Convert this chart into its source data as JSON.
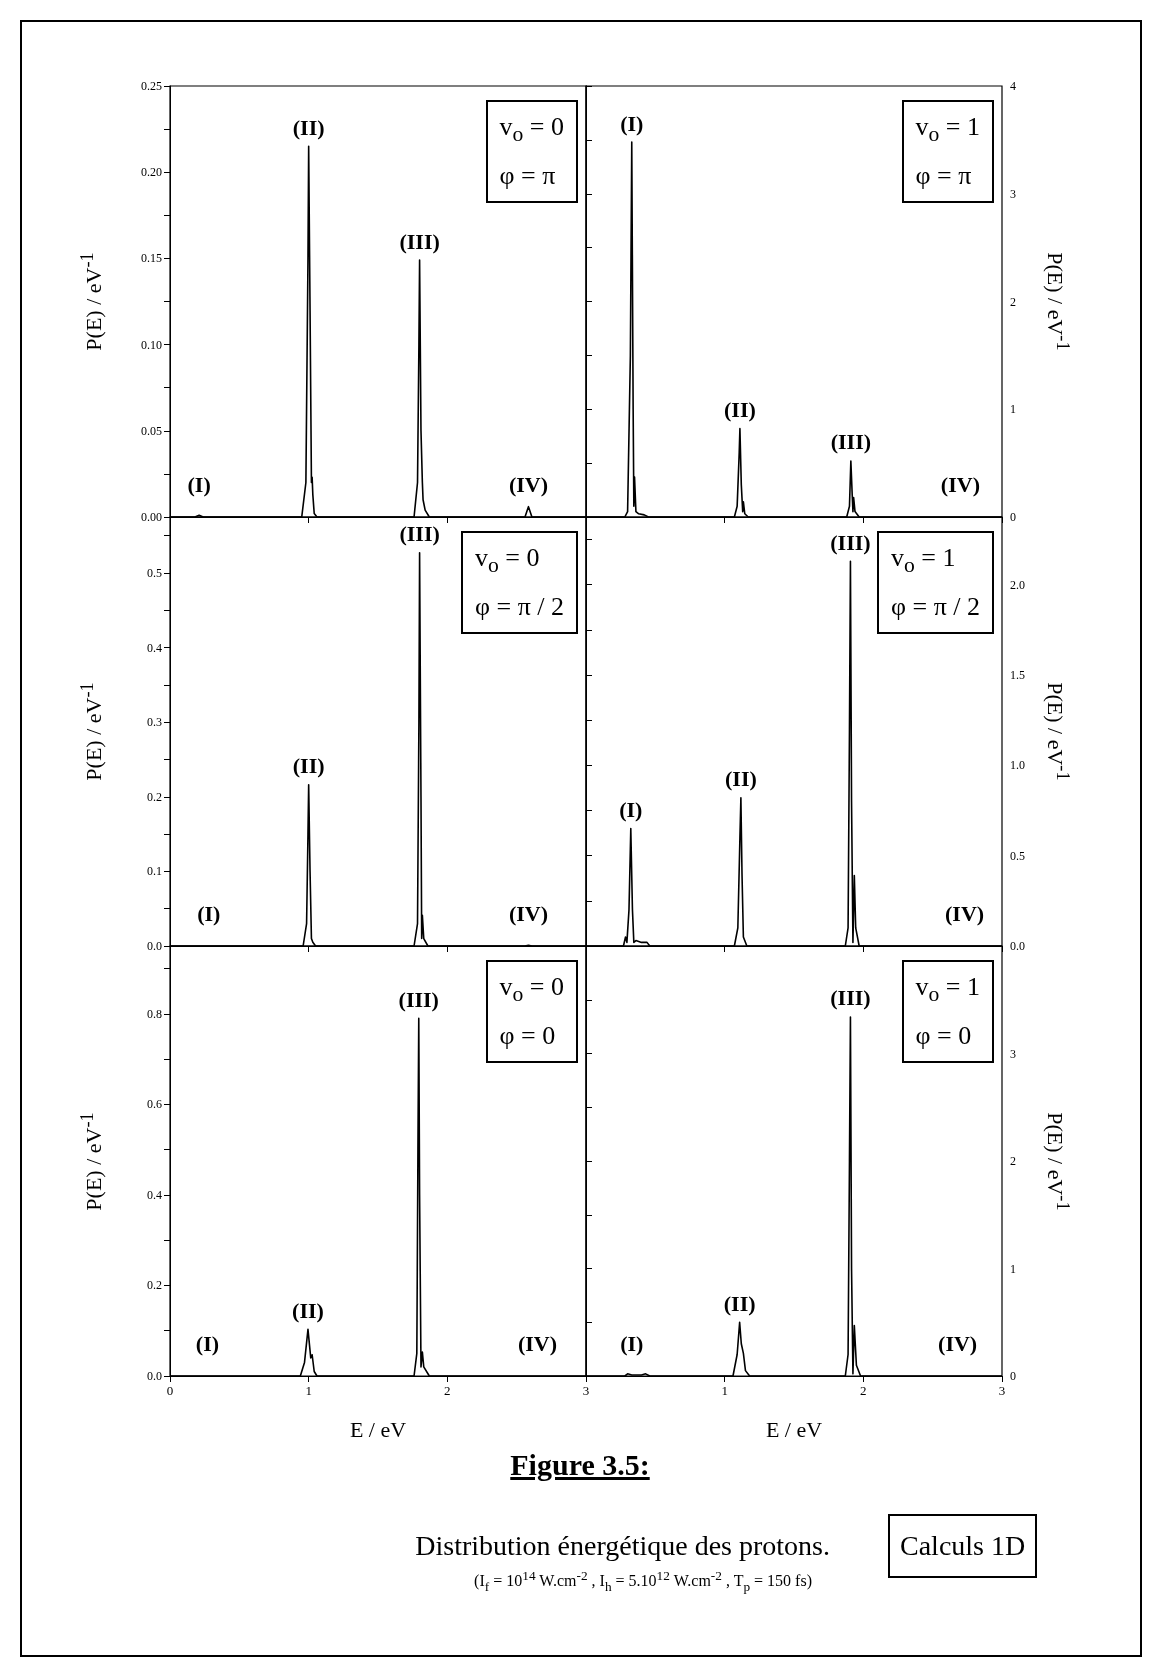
{
  "chart_data": [
    {
      "type": "line",
      "ylabel": "P(E) / eV$^{-1}$",
      "xlim": [
        0,
        3
      ],
      "xticks": [
        0,
        1,
        2,
        3
      ],
      "ylim": [
        0,
        0.25
      ],
      "yticks": [
        {
          "value": 0,
          "label": "0.00"
        },
        {
          "value": 0.025,
          "label": null
        },
        0.05,
        {
          "value": 0.075,
          "label": null
        },
        {
          "value": 0.1,
          "label": "0.10"
        },
        {
          "value": 0.125,
          "label": null
        },
        0.15,
        {
          "value": 0.175,
          "label": null
        },
        {
          "value": 0.2,
          "label": "0.20"
        },
        {
          "value": 0.225,
          "label": null
        },
        0.25
      ],
      "tick_labels": "y",
      "marker": "none",
      "series": [
        {
          "color": "#000000",
          "x": [
            0,
            0.18,
            0.21,
            0.24,
            0.95,
            0.98,
            0.995,
            1.0,
            1.01,
            1.02,
            1.025,
            1.03,
            1.04,
            1.06,
            1.76,
            1.785,
            1.795,
            1.8,
            1.81,
            1.82,
            1.825,
            1.84,
            1.87,
            2.56,
            2.585,
            2.61,
            3
          ],
          "values": [
            0,
            0,
            0.001,
            0,
            0,
            0.02,
            0.15,
            0.215,
            0.12,
            0.02,
            0.023,
            0.013,
            0.002,
            0,
            0,
            0.02,
            0.1,
            0.149,
            0.05,
            0.02,
            0.01,
            0.004,
            0,
            0,
            0.006,
            0,
            0
          ]
        }
      ],
      "annotations": [
        "v$_{o}$ = 0",
        "φ = π",
        {
          "text": "(I)",
          "x": 0.21,
          "y": 0.001
        },
        {
          "text": "(II)",
          "x": 1.0,
          "y": 0.215
        },
        {
          "text": "(III)",
          "x": 1.8,
          "y": 0.149
        },
        {
          "text": "(IV)",
          "x": 2.585,
          "y": 0.006
        }
      ]
    },
    {
      "type": "line",
      "ylabel": "P(E) / eV$^{-1}$",
      "xlim": [
        0,
        3
      ],
      "xticks": [
        1,
        2,
        3
      ],
      "ylim": [
        0,
        4
      ],
      "yticks": [
        0,
        {
          "value": 0.5,
          "label": null
        },
        1,
        {
          "value": 1.5,
          "label": null
        },
        2,
        {
          "value": 2.5,
          "label": null
        },
        3,
        {
          "value": 3.5,
          "label": null
        },
        4
      ],
      "tick_labels": "y",
      "marker": "none",
      "series": [
        {
          "color": "#000000",
          "x": [
            0,
            0.28,
            0.3,
            0.32,
            0.33,
            0.34,
            0.345,
            0.35,
            0.36,
            0.38,
            0.42,
            0.45,
            1.07,
            1.09,
            1.105,
            1.11,
            1.12,
            1.13,
            1.135,
            1.145,
            1.17,
            1.88,
            1.9,
            1.91,
            1.92,
            1.925,
            1.93,
            1.94,
            1.97,
            2.7,
            3
          ],
          "values": [
            0,
            0,
            0.05,
            1.5,
            3.48,
            1.0,
            0.1,
            0.37,
            0.05,
            0.03,
            0.02,
            0,
            0,
            0.1,
            0.6,
            0.82,
            0.3,
            0.05,
            0.14,
            0.03,
            0,
            0,
            0.1,
            0.52,
            0.2,
            0.05,
            0.18,
            0.05,
            0,
            0,
            0
          ]
        }
      ],
      "annotations": [
        "v$_{o}$ = 1",
        "φ = π",
        {
          "text": "(I)",
          "x": 0.33,
          "y": 3.48
        },
        {
          "text": "(II)",
          "x": 1.11,
          "y": 0.82
        },
        {
          "text": "(III)",
          "x": 1.91,
          "y": 0.52
        },
        {
          "text": "(IV)",
          "x": 2.7,
          "y": 0
        }
      ]
    },
    {
      "type": "line",
      "ylabel": "P(E) / eV$^{-1}$",
      "xlim": [
        0,
        3
      ],
      "xticks": [
        0,
        1,
        2,
        3
      ],
      "ylim": [
        0,
        0.575
      ],
      "yticks": [
        {
          "value": 0,
          "label": "0.0"
        },
        {
          "value": 0.05,
          "label": null
        },
        0.1,
        {
          "value": 0.15,
          "label": null
        },
        0.2,
        {
          "value": 0.25,
          "label": null
        },
        0.3,
        {
          "value": 0.35,
          "label": null
        },
        0.4,
        {
          "value": 0.45,
          "label": null
        },
        0.5,
        {
          "value": 0.55,
          "label": null
        }
      ],
      "tick_labels": "y",
      "marker": "none",
      "series": [
        {
          "color": "#000000",
          "x": [
            0,
            0.28,
            0.96,
            0.985,
            0.995,
            1.0,
            1.01,
            1.02,
            1.03,
            1.05,
            1.76,
            1.785,
            1.795,
            1.8,
            1.81,
            1.815,
            1.82,
            1.83,
            1.86,
            2.56,
            2.585,
            2.61,
            3
          ],
          "values": [
            0,
            0,
            0,
            0.03,
            0.15,
            0.216,
            0.1,
            0.01,
            0.005,
            0,
            0,
            0.03,
            0.3,
            0.527,
            0.2,
            0.01,
            0.041,
            0.01,
            0,
            0,
            0.001,
            0,
            0
          ]
        }
      ],
      "annotations": [
        "v$_{o}$ = 0",
        "φ = π / 2",
        {
          "text": "(I)",
          "x": 0.28,
          "y": 0
        },
        {
          "text": "(II)",
          "x": 1.0,
          "y": 0.216
        },
        {
          "text": "(III)",
          "x": 1.8,
          "y": 0.527
        },
        {
          "text": "(IV)",
          "x": 2.585,
          "y": 0.001
        }
      ]
    },
    {
      "type": "line",
      "ylabel": "P(E) / eV$^{-1}$",
      "xlim": [
        0,
        3
      ],
      "xticks": [
        1,
        2,
        3
      ],
      "ylim": [
        0,
        2.375
      ],
      "yticks": [
        {
          "value": 0,
          "label": "0.0"
        },
        {
          "value": 0.25,
          "label": null
        },
        0.5,
        {
          "value": 0.75,
          "label": null
        },
        {
          "value": 1,
          "label": "1.0"
        },
        {
          "value": 1.25,
          "label": null
        },
        1.5,
        {
          "value": 1.75,
          "label": null
        },
        {
          "value": 2,
          "label": "2.0"
        },
        {
          "value": 2.25,
          "label": null
        }
      ],
      "tick_labels": "y",
      "marker": "none",
      "series": [
        {
          "color": "#000000",
          "x": [
            0,
            0.27,
            0.285,
            0.295,
            0.31,
            0.323,
            0.335,
            0.345,
            0.36,
            0.4,
            0.44,
            0.46,
            1.07,
            1.095,
            1.11,
            1.117,
            1.125,
            1.135,
            1.14,
            1.16,
            1.87,
            1.89,
            1.9,
            1.907,
            1.915,
            1.925,
            1.935,
            1.945,
            1.97,
            2.73,
            3
          ],
          "values": [
            0,
            0,
            0.05,
            0.02,
            0.2,
            0.65,
            0.2,
            0.02,
            0.03,
            0.02,
            0.02,
            0,
            0,
            0.1,
            0.6,
            0.82,
            0.4,
            0.05,
            0.05,
            0,
            0,
            0.1,
            1.2,
            2.13,
            0.8,
            0.02,
            0.39,
            0.1,
            0,
            0,
            0
          ]
        }
      ],
      "annotations": [
        "v$_{o}$ = 1",
        "φ = π / 2",
        {
          "text": "(I)",
          "x": 0.323,
          "y": 0.65
        },
        {
          "text": "(II)",
          "x": 1.117,
          "y": 0.82
        },
        {
          "text": "(III)",
          "x": 1.907,
          "y": 2.13
        },
        {
          "text": "(IV)",
          "x": 2.73,
          "y": 0
        }
      ]
    },
    {
      "type": "line",
      "xlabel": "E / eV",
      "ylabel": "P(E) / eV$^{-1}$",
      "xlim": [
        0,
        3
      ],
      "xticks": [
        0,
        1,
        2,
        3
      ],
      "ylim": [
        0,
        0.95
      ],
      "yticks": [
        {
          "value": 0,
          "label": "0.0"
        },
        {
          "value": 0.1,
          "label": null
        },
        0.2,
        {
          "value": 0.3,
          "label": null
        },
        0.4,
        {
          "value": 0.5,
          "label": null
        },
        0.6,
        {
          "value": 0.7,
          "label": null
        },
        0.8,
        {
          "value": 0.9,
          "label": null
        }
      ],
      "marker": "none",
      "series": [
        {
          "color": "#000000",
          "x": [
            0,
            0.27,
            0.94,
            0.97,
            0.995,
            1.015,
            1.025,
            1.04,
            1.06,
            1.76,
            1.78,
            1.788,
            1.794,
            1.8,
            1.81,
            1.82,
            1.83,
            1.87,
            2.65,
            3
          ],
          "values": [
            0,
            0,
            0,
            0.03,
            0.103,
            0.04,
            0.047,
            0.01,
            0,
            0,
            0.05,
            0.5,
            0.79,
            0.4,
            0.02,
            0.053,
            0.02,
            0,
            0,
            0
          ]
        }
      ],
      "annotations": [
        "v$_{o}$ = 0",
        "φ = 0",
        {
          "text": "(I)",
          "x": 0.27,
          "y": 0
        },
        {
          "text": "(II)",
          "x": 0.995,
          "y": 0.103
        },
        {
          "text": "(III)",
          "x": 1.794,
          "y": 0.79
        },
        {
          "text": "(IV)",
          "x": 2.65,
          "y": 0
        }
      ]
    },
    {
      "type": "line",
      "xlabel": "E / eV",
      "ylabel": "P(E) / eV$^{-1}$",
      "xlim": [
        0,
        3
      ],
      "xticks": [
        1,
        2,
        3
      ],
      "ylim": [
        0,
        4
      ],
      "yticks": [
        0,
        {
          "value": 0.5,
          "label": null
        },
        1,
        {
          "value": 1.5,
          "label": null
        },
        2,
        {
          "value": 2.5,
          "label": null
        },
        3,
        {
          "value": 3.5,
          "label": null
        }
      ],
      "marker": "none",
      "series": [
        {
          "color": "#000000",
          "x": [
            0,
            0.28,
            0.3,
            0.33,
            0.4,
            0.43,
            0.46,
            1.06,
            1.09,
            1.108,
            1.12,
            1.135,
            1.15,
            1.18,
            1.87,
            1.89,
            1.9,
            1.907,
            1.915,
            1.925,
            1.935,
            1.95,
            1.98,
            2.68,
            3
          ],
          "values": [
            0,
            0,
            0.02,
            0.01,
            0.01,
            0.02,
            0,
            0,
            0.2,
            0.5,
            0.3,
            0.21,
            0.05,
            0,
            0,
            0.2,
            2.0,
            3.34,
            1.0,
            0.02,
            0.47,
            0.1,
            0,
            0,
            0
          ]
        }
      ],
      "annotations": [
        "v$_{o}$ = 1",
        "φ = 0",
        {
          "text": "(I)",
          "x": 0.33,
          "y": 0.01
        },
        {
          "text": "(II)",
          "x": 1.108,
          "y": 0.5
        },
        {
          "text": "(III)",
          "x": 1.907,
          "y": 3.34
        },
        {
          "text": "(IV)",
          "x": 2.68,
          "y": 0
        }
      ]
    },
    {
      "type": "other",
      "title": "Figure 3.5:",
      "annotations": [
        "Distribution énergétique des protons.",
        "(I$_{f}$ = 10$^{14}$ W.cm$^{-2}$ , I$_{h}$ = 5.10$^{12}$ W.cm$^{-2}$ , T$_{p}$ = 150 fs)",
        "Calculs 1D"
      ]
    }
  ]
}
